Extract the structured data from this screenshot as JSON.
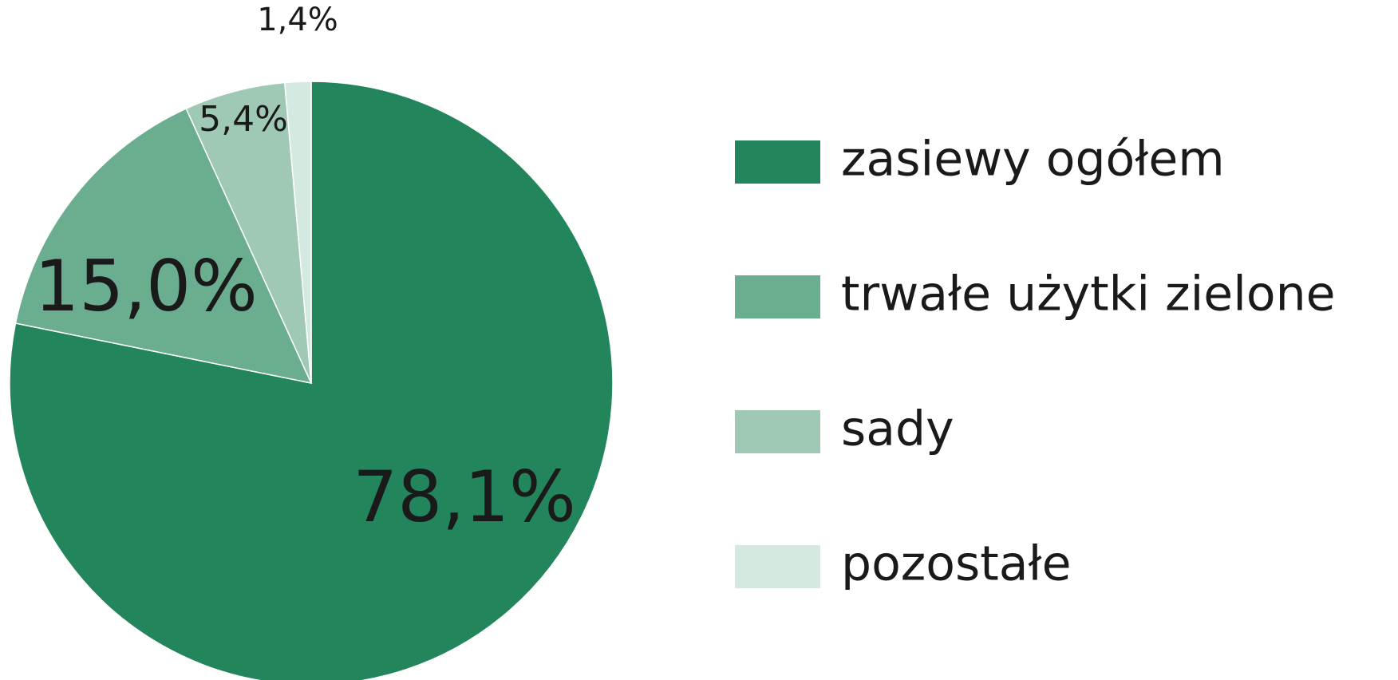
{
  "chart_data": {
    "type": "pie",
    "categories": [
      "zasiewy ogółem",
      "trwałe użytki zielone",
      "sady",
      "pozostałe"
    ],
    "values": [
      78.1,
      15.0,
      5.4,
      1.4
    ],
    "value_labels": [
      "78,1%",
      "15,0%",
      "5,4%",
      "1,4%"
    ],
    "colors": [
      "#22855b",
      "#6aad8f",
      "#9fc9b5",
      "#d4e9df"
    ],
    "legend": "right"
  }
}
